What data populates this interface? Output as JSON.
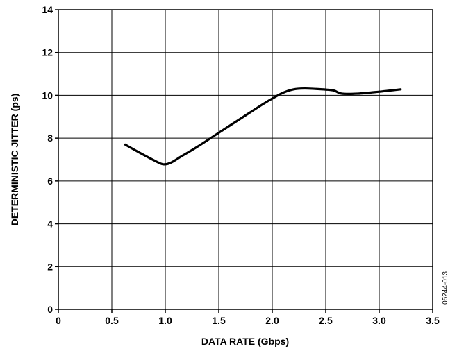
{
  "chart_data": {
    "type": "line",
    "xlabel": "DATA RATE (Gbps)",
    "ylabel": "DETERMINISTIC JITTER (ps)",
    "xlim": [
      0,
      3.5
    ],
    "ylim": [
      0,
      14
    ],
    "xticks": [
      0,
      0.5,
      1.0,
      1.5,
      2.0,
      2.5,
      3.0,
      3.5
    ],
    "xtick_labels": [
      "0",
      "0.5",
      "1.0",
      "1.5",
      "2.0",
      "2.5",
      "3.0",
      "3.5"
    ],
    "yticks": [
      0,
      2,
      4,
      6,
      8,
      10,
      12,
      14
    ],
    "ytick_labels": [
      "0",
      "2",
      "4",
      "6",
      "8",
      "10",
      "12",
      "14"
    ],
    "grid": true,
    "series": [
      {
        "x": [
          0.625,
          0.75,
          0.9,
          0.98,
          1.05,
          1.15,
          1.3,
          1.5,
          1.7,
          1.9,
          2.0,
          2.1,
          2.2,
          2.3,
          2.4,
          2.5,
          2.58,
          2.65,
          2.8,
          3.0,
          3.2
        ],
        "y": [
          7.7,
          7.35,
          6.95,
          6.78,
          6.85,
          7.15,
          7.6,
          8.25,
          8.9,
          9.55,
          9.85,
          10.12,
          10.28,
          10.32,
          10.3,
          10.27,
          10.22,
          10.08,
          10.08,
          10.17,
          10.28
        ]
      }
    ],
    "side_label": "05244-013"
  }
}
